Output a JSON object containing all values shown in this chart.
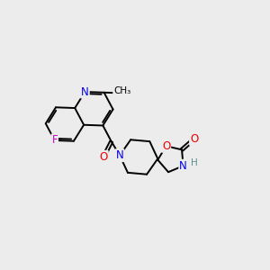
{
  "background_color": "#ececec",
  "figsize": [
    3.0,
    3.0
  ],
  "dpi": 100,
  "bond_color": "#000000",
  "bond_width": 1.4,
  "atom_colors": {
    "N": "#0000ee",
    "O": "#ee0000",
    "F": "#cc00cc",
    "H": "#5a9090"
  },
  "font_size": 8.5,
  "font_size_h": 7.5,
  "bg": "#ececec"
}
